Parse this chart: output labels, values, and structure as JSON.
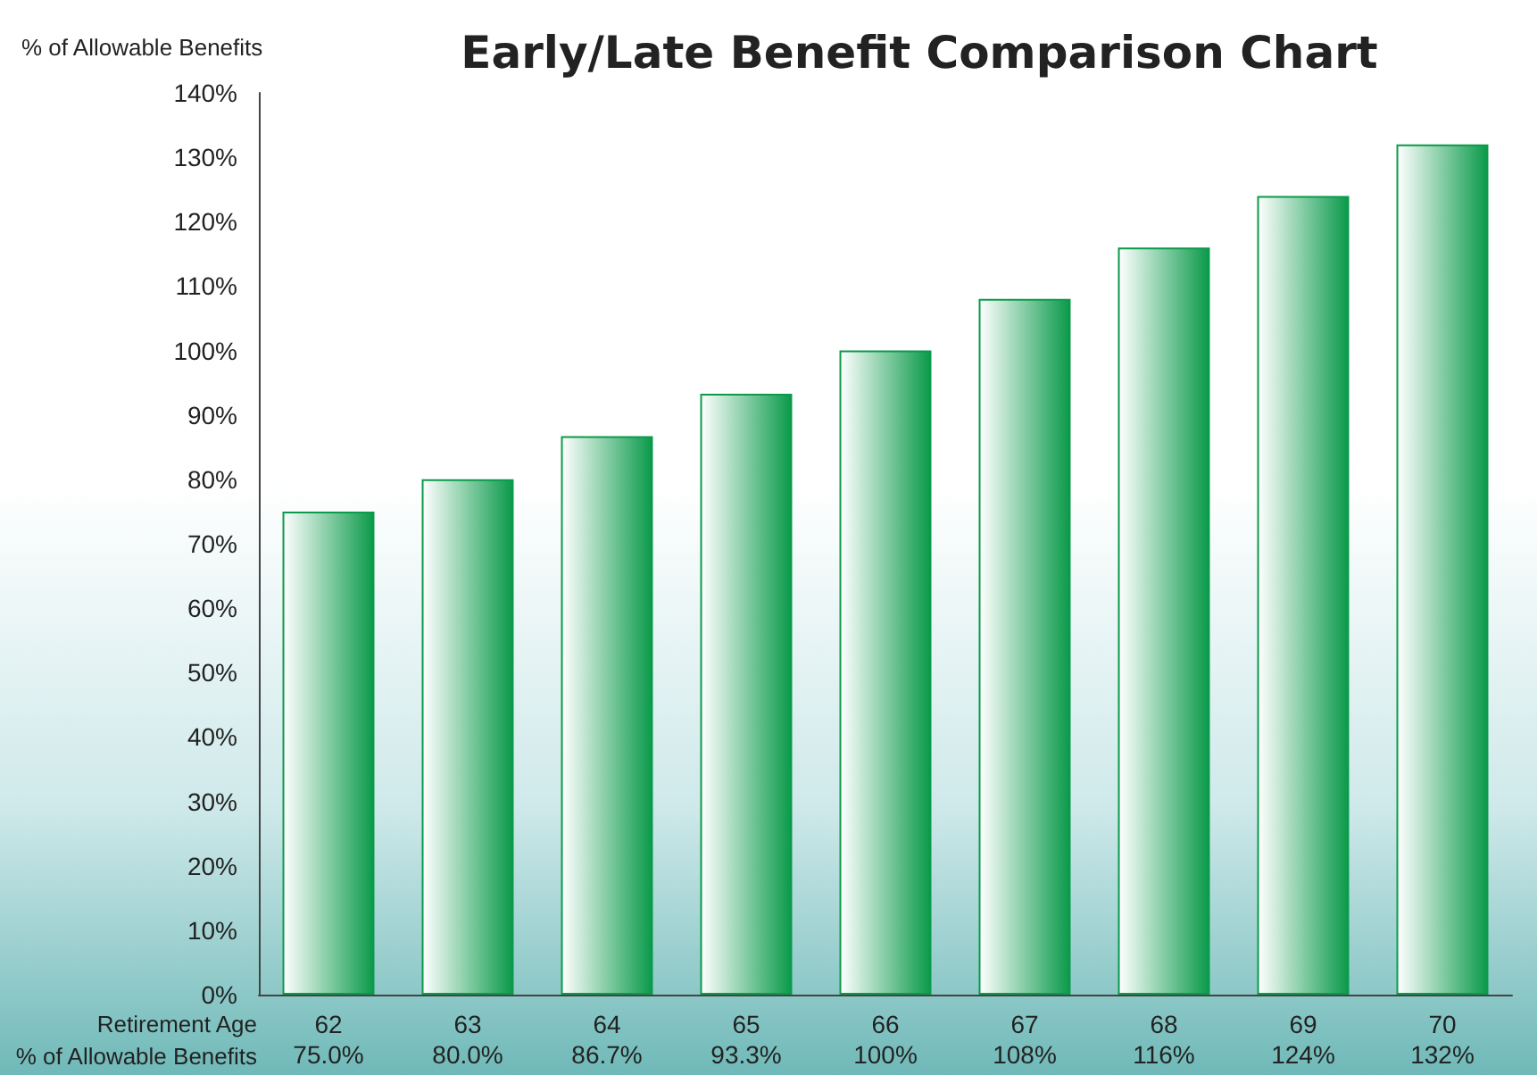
{
  "chart_data": {
    "type": "bar",
    "title": "Early/Late Benefit Comparison Chart",
    "ylabel": "% of Allowable Benefits",
    "xlabel": "Retirement Age",
    "annotations": [
      "% of Allowable Benefits"
    ],
    "categories": [
      "62",
      "63",
      "64",
      "65",
      "66",
      "67",
      "68",
      "69",
      "70"
    ],
    "values": [
      75.0,
      80.0,
      86.7,
      93.3,
      100,
      108,
      116,
      124,
      132
    ],
    "value_labels": [
      "75.0%",
      "80.0%",
      "86.7%",
      "93.3%",
      "100%",
      "108%",
      "116%",
      "124%",
      "132%"
    ],
    "color": "#0a9a4a",
    "ylim": [
      0,
      140
    ],
    "yticks": [
      {
        "value": 0,
        "label": "0%"
      },
      {
        "value": 10,
        "label": "10%"
      },
      {
        "value": 20,
        "label": "20%"
      },
      {
        "value": 30,
        "label": "30%"
      },
      {
        "value": 40,
        "label": "40%"
      },
      {
        "value": 50,
        "label": "50%"
      },
      {
        "value": 60,
        "label": "60%"
      },
      {
        "value": 70,
        "label": "70%"
      },
      {
        "value": 80,
        "label": "80%"
      },
      {
        "value": 90,
        "label": "90%"
      },
      {
        "value": 100,
        "label": "100%"
      },
      {
        "value": 110,
        "label": "110%"
      },
      {
        "value": 120,
        "label": "120%"
      },
      {
        "value": 130,
        "label": "130%"
      },
      {
        "value": 140,
        "label": "140%"
      }
    ],
    "grid": false
  }
}
